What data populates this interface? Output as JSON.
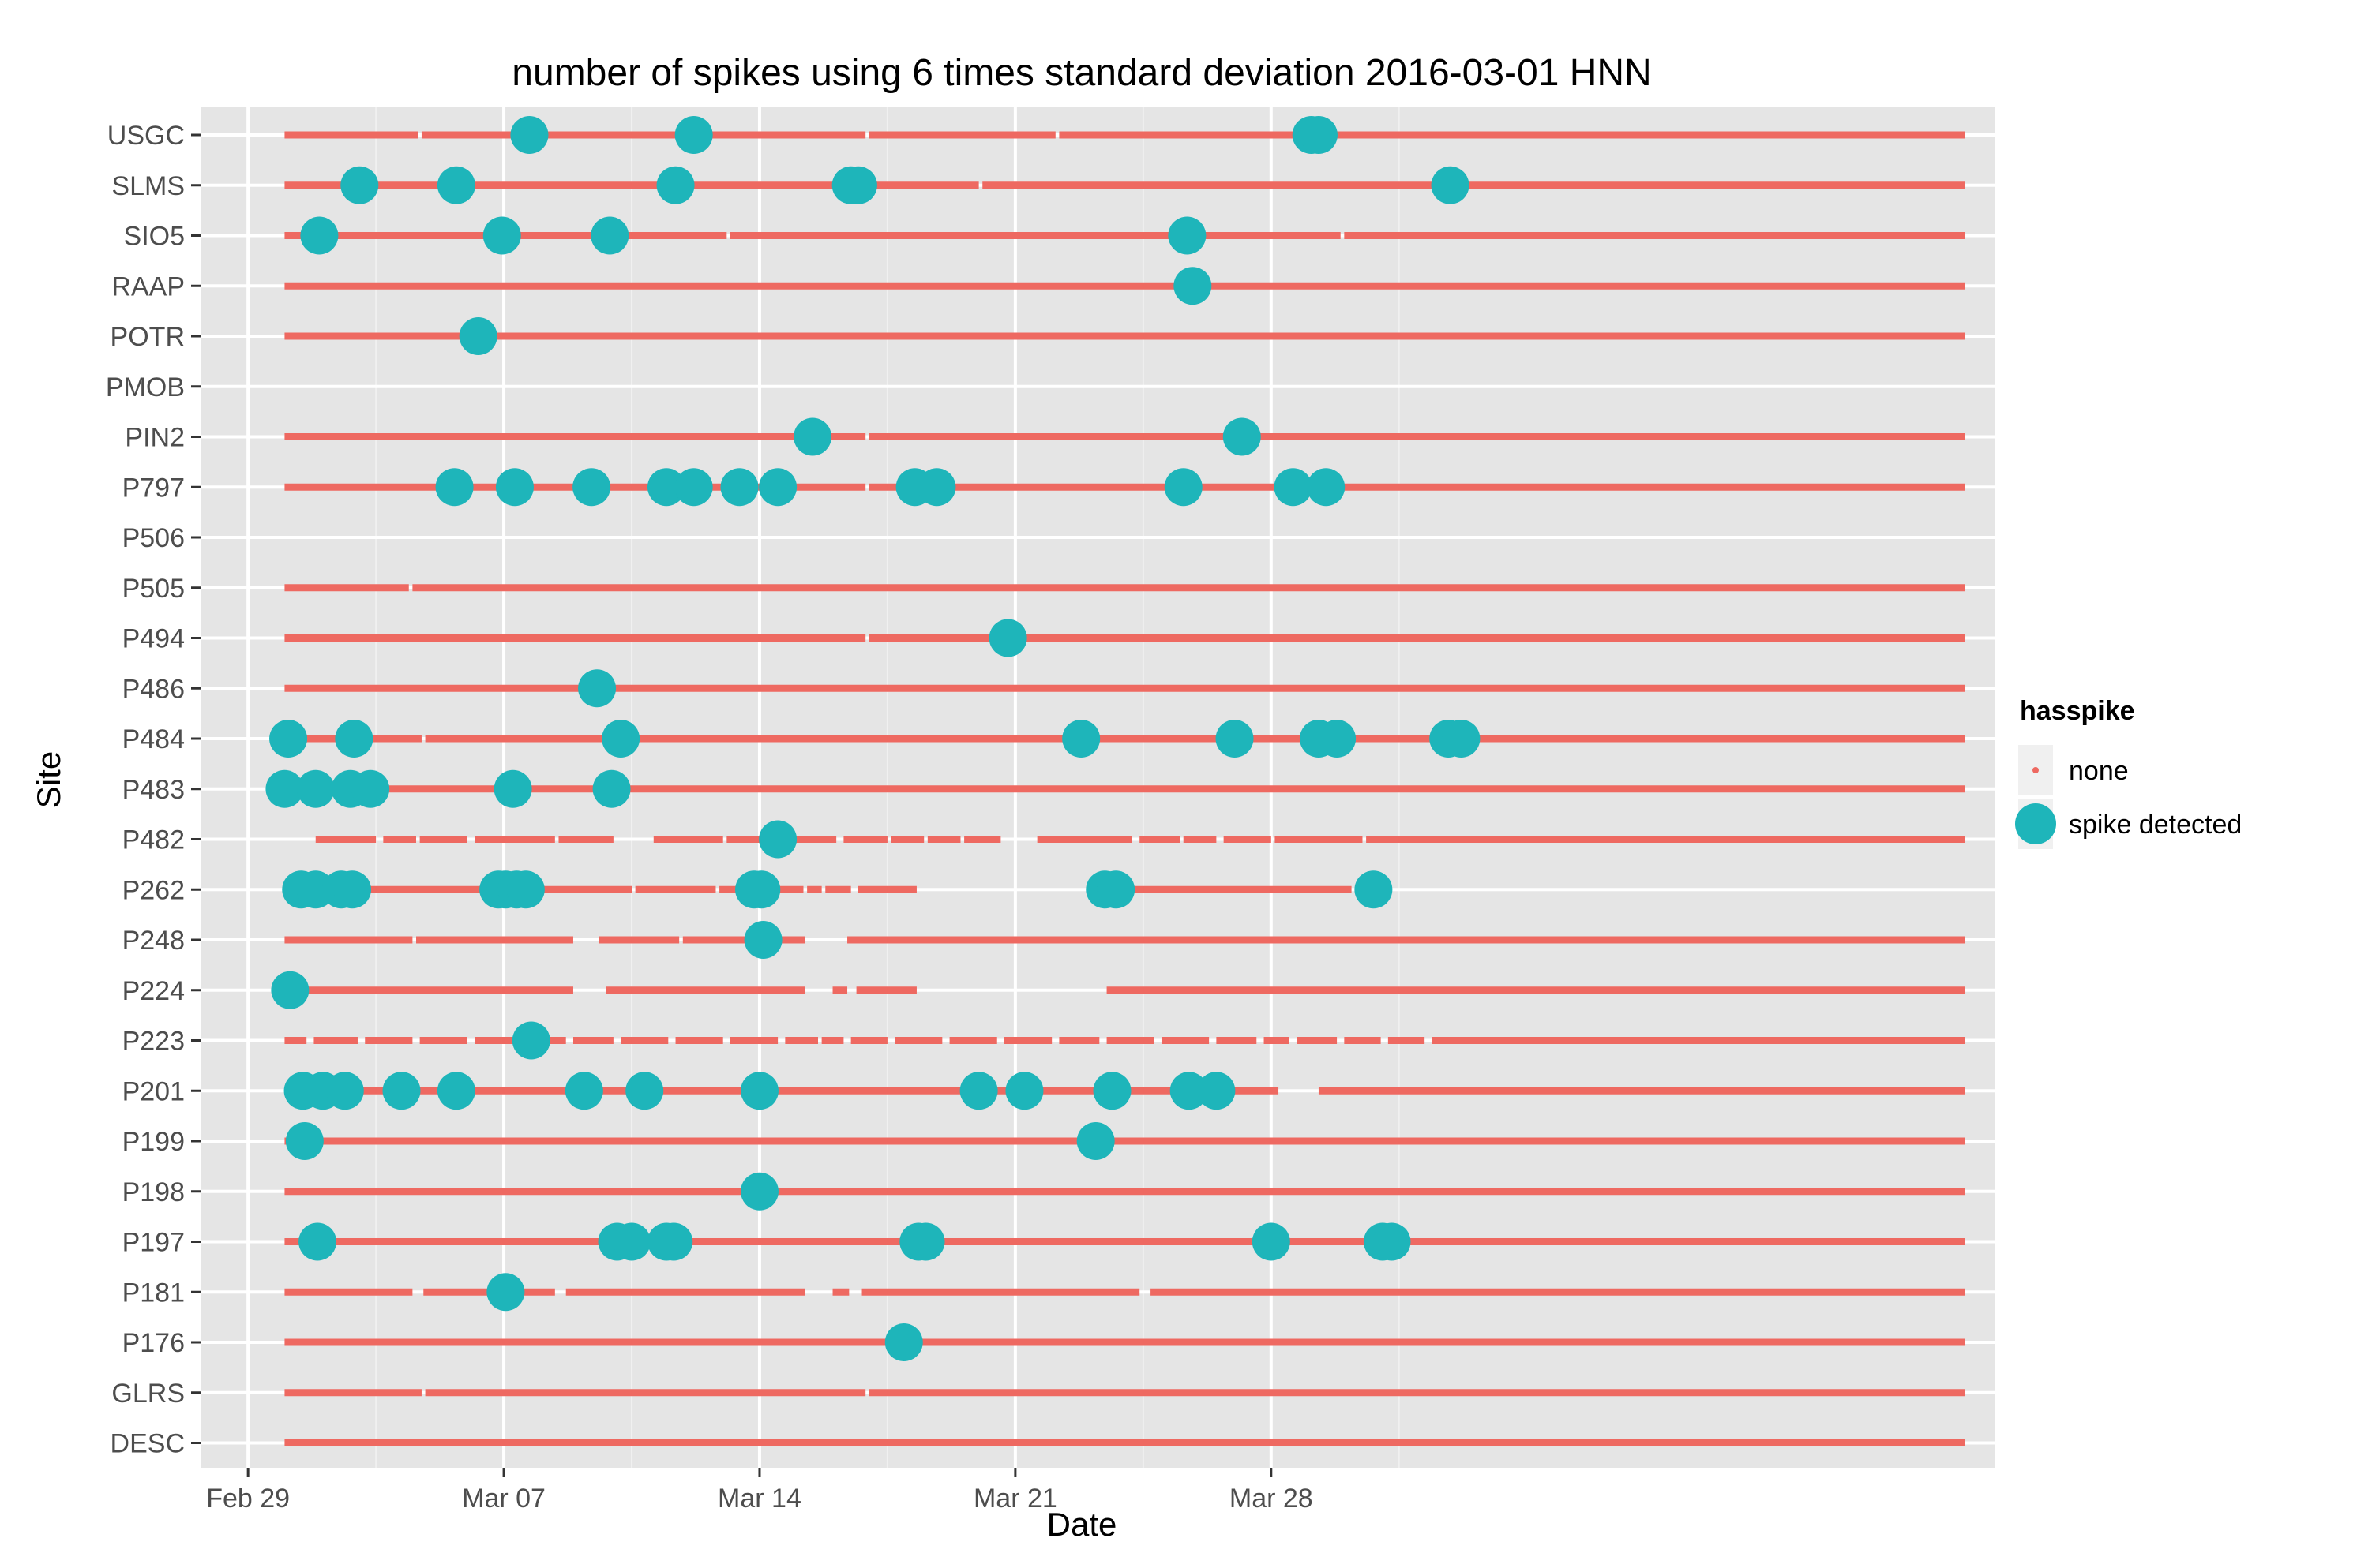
{
  "chart_data": {
    "type": "scatter",
    "title": "number of spikes using  6 times standard deviation 2016-03-01 HNN",
    "xlabel": "Date",
    "ylabel": "Site",
    "x_unit": "days since Feb 29",
    "xlim": [
      -1.3,
      47.8
    ],
    "x_ticks": [
      {
        "value": 0,
        "label": "Feb 29"
      },
      {
        "value": 7,
        "label": "Mar 07"
      },
      {
        "value": 14,
        "label": "Mar 14"
      },
      {
        "value": 21,
        "label": "Mar 21"
      },
      {
        "value": 28,
        "label": "Mar 28"
      }
    ],
    "grid": true,
    "legend": {
      "title": "hasspike",
      "placement": "right",
      "entries": [
        {
          "label": "none",
          "color": "#F8766D"
        },
        {
          "label": "spike detected",
          "color": "#00BFC4"
        }
      ]
    },
    "colors": {
      "none": "#EE6961",
      "spike": "#1EB5BA",
      "panel": "#E5E5E5",
      "grid_major": "#FFFFFF",
      "grid_minor": "#F0F0F0"
    },
    "sites": [
      {
        "name": "USGC",
        "data_ranges": [
          [
            1,
            47
          ]
        ],
        "gaps": [
          [
            4.65,
            4.75
          ],
          [
            16.9,
            17.0
          ],
          [
            22.1,
            22.2
          ],
          [
            29.5,
            29.6
          ]
        ],
        "spikes": [
          7.7,
          12.2,
          29.1,
          29.3
        ]
      },
      {
        "name": "SLMS",
        "data_ranges": [
          [
            1,
            47
          ]
        ],
        "gaps": [
          [
            5.7,
            5.8
          ],
          [
            20.0,
            20.1
          ]
        ],
        "spikes": [
          3.05,
          5.7,
          11.7,
          16.5,
          16.7,
          32.9
        ]
      },
      {
        "name": "SIO5",
        "data_ranges": [
          [
            1,
            47
          ]
        ],
        "gaps": [
          [
            13.1,
            13.2
          ],
          [
            29.9,
            30.0
          ]
        ],
        "spikes": [
          1.95,
          6.95,
          9.9,
          25.7
        ]
      },
      {
        "name": "RAAP",
        "data_ranges": [
          [
            1,
            47
          ]
        ],
        "gaps": [],
        "spikes": [
          25.85
        ]
      },
      {
        "name": "POTR",
        "data_ranges": [
          [
            1,
            47
          ]
        ],
        "gaps": [],
        "spikes": [
          6.3
        ]
      },
      {
        "name": "PMOB",
        "data_ranges": [],
        "gaps": [],
        "spikes": []
      },
      {
        "name": "PIN2",
        "data_ranges": [
          [
            1,
            47
          ]
        ],
        "gaps": [
          [
            16.9,
            17.0
          ]
        ],
        "spikes": [
          15.45,
          27.2
        ]
      },
      {
        "name": "P797",
        "data_ranges": [
          [
            1,
            47
          ]
        ],
        "gaps": [
          [
            16.9,
            17.0
          ]
        ],
        "spikes": [
          5.65,
          7.3,
          9.4,
          11.45,
          12.2,
          13.45,
          14.5,
          18.25,
          18.85,
          25.6,
          28.6,
          29.5
        ]
      },
      {
        "name": "P506",
        "data_ranges": [],
        "gaps": [],
        "spikes": []
      },
      {
        "name": "P505",
        "data_ranges": [
          [
            1,
            47
          ]
        ],
        "gaps": [
          [
            4.4,
            4.5
          ]
        ],
        "spikes": []
      },
      {
        "name": "P494",
        "data_ranges": [
          [
            1,
            47
          ]
        ],
        "gaps": [
          [
            16.9,
            17.0
          ]
        ],
        "spikes": [
          20.8
        ]
      },
      {
        "name": "P486",
        "data_ranges": [
          [
            1,
            47
          ]
        ],
        "gaps": [],
        "spikes": [
          9.55
        ]
      },
      {
        "name": "P484",
        "data_ranges": [
          [
            1,
            47
          ]
        ],
        "gaps": [
          [
            4.75,
            4.85
          ]
        ],
        "spikes": [
          1.1,
          2.9,
          10.2,
          22.8,
          27.0,
          29.3,
          29.8,
          32.85,
          33.2
        ]
      },
      {
        "name": "P483",
        "data_ranges": [
          [
            1,
            47
          ]
        ],
        "gaps": [],
        "spikes": [
          1.0,
          1.85,
          2.8,
          3.35,
          7.25,
          9.95
        ]
      },
      {
        "name": "P482",
        "data_ranges": [
          [
            1.85,
            10.0
          ],
          [
            11.1,
            20.6
          ],
          [
            21.6,
            47
          ]
        ],
        "gaps": [
          [
            3.5,
            3.7
          ],
          [
            4.6,
            4.7
          ],
          [
            6.0,
            6.2
          ],
          [
            8.4,
            8.5
          ],
          [
            13.0,
            13.1
          ],
          [
            16.1,
            16.3
          ],
          [
            17.5,
            17.6
          ],
          [
            18.5,
            18.6
          ],
          [
            19.5,
            19.6
          ],
          [
            24.2,
            24.4
          ],
          [
            25.5,
            25.6
          ],
          [
            26.5,
            26.7
          ],
          [
            28.0,
            28.1
          ],
          [
            30.5,
            30.6
          ]
        ],
        "spikes": [
          14.5
        ]
      },
      {
        "name": "P262",
        "data_ranges": [
          [
            1,
            16.5
          ],
          [
            16.7,
            18.3
          ],
          [
            24.0,
            30.2
          ]
        ],
        "gaps": [
          [
            8.0,
            8.1
          ],
          [
            10.5,
            10.6
          ],
          [
            12.8,
            12.9
          ],
          [
            15.2,
            15.3
          ],
          [
            15.7,
            15.8
          ]
        ],
        "spikes": [
          1.45,
          1.85,
          2.55,
          2.85,
          6.85,
          7.05,
          7.35,
          7.6,
          13.85,
          14.05,
          23.45,
          23.75,
          30.8
        ]
      },
      {
        "name": "P248",
        "data_ranges": [
          [
            1,
            8.9
          ],
          [
            9.6,
            15.25
          ],
          [
            16.4,
            47
          ]
        ],
        "gaps": [
          [
            4.5,
            4.6
          ],
          [
            11.8,
            11.9
          ]
        ],
        "spikes": [
          14.1
        ]
      },
      {
        "name": "P224",
        "data_ranges": [
          [
            1,
            8.9
          ],
          [
            9.8,
            15.25
          ],
          [
            16.0,
            16.4
          ],
          [
            16.65,
            18.3
          ],
          [
            23.5,
            47
          ]
        ],
        "gaps": [],
        "spikes": [
          1.15
        ]
      },
      {
        "name": "P223",
        "data_ranges": [
          [
            1,
            47
          ]
        ],
        "gaps": [
          [
            1.6,
            1.8
          ],
          [
            3.0,
            3.2
          ],
          [
            4.5,
            4.7
          ],
          [
            6.0,
            6.2
          ],
          [
            8.7,
            8.9
          ],
          [
            10.0,
            10.2
          ],
          [
            11.5,
            11.7
          ],
          [
            13.0,
            13.2
          ],
          [
            14.5,
            14.7
          ],
          [
            15.6,
            15.7
          ],
          [
            16.3,
            16.5
          ],
          [
            17.5,
            17.7
          ],
          [
            19.0,
            19.2
          ],
          [
            20.5,
            20.7
          ],
          [
            22.0,
            22.2
          ],
          [
            23.3,
            23.5
          ],
          [
            24.8,
            25.0
          ],
          [
            26.3,
            26.5
          ],
          [
            27.6,
            27.8
          ],
          [
            28.5,
            28.7
          ],
          [
            29.8,
            30.0
          ],
          [
            31.0,
            31.2
          ],
          [
            32.2,
            32.4
          ]
        ],
        "spikes": [
          7.75
        ]
      },
      {
        "name": "P201",
        "data_ranges": [
          [
            1,
            28.2
          ],
          [
            29.3,
            47
          ]
        ],
        "gaps": [
          [
            20.2,
            20.4
          ]
        ],
        "spikes": [
          1.5,
          2.05,
          2.65,
          4.2,
          5.7,
          9.2,
          10.85,
          14.0,
          20.0,
          21.25,
          23.65,
          25.75,
          26.5
        ]
      },
      {
        "name": "P199",
        "data_ranges": [
          [
            1,
            47
          ]
        ],
        "gaps": [],
        "spikes": [
          1.55,
          23.2
        ]
      },
      {
        "name": "P198",
        "data_ranges": [
          [
            1,
            47
          ]
        ],
        "gaps": [],
        "spikes": [
          14.0
        ]
      },
      {
        "name": "P197",
        "data_ranges": [
          [
            1,
            47
          ]
        ],
        "gaps": [],
        "spikes": [
          1.9,
          10.1,
          10.5,
          11.45,
          11.65,
          18.35,
          18.55,
          28.0,
          31.05,
          31.3
        ]
      },
      {
        "name": "P181",
        "data_ranges": [
          [
            1,
            4.5
          ],
          [
            4.8,
            8.4
          ],
          [
            8.7,
            15.25
          ],
          [
            16.0,
            16.45
          ],
          [
            16.8,
            24.4
          ],
          [
            24.7,
            47
          ]
        ],
        "gaps": [],
        "spikes": [
          7.05
        ]
      },
      {
        "name": "P176",
        "data_ranges": [
          [
            1,
            47
          ]
        ],
        "gaps": [],
        "spikes": [
          17.95
        ]
      },
      {
        "name": "GLRS",
        "data_ranges": [
          [
            1,
            47
          ]
        ],
        "gaps": [
          [
            4.75,
            4.85
          ],
          [
            16.9,
            17.0
          ]
        ],
        "spikes": []
      },
      {
        "name": "DESC",
        "data_ranges": [
          [
            1,
            47
          ]
        ],
        "gaps": [],
        "spikes": []
      }
    ]
  }
}
